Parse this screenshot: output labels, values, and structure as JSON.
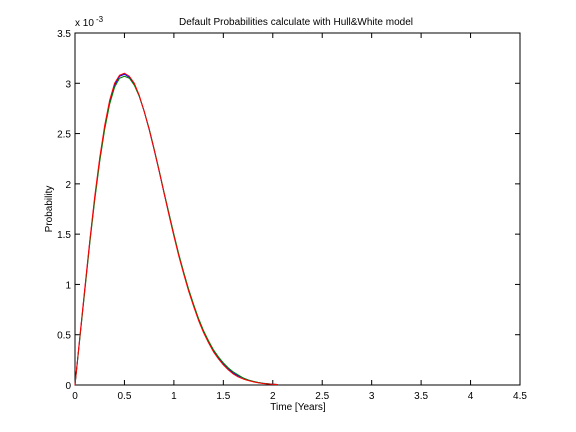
{
  "chart_data": {
    "type": "line",
    "title": "Default Probabilities calculate with Hull&White model",
    "xlabel": "Time [Years]",
    "ylabel": "Probability",
    "y_exponent_label": "x 10",
    "y_exponent_power": "-3",
    "xlim": [
      0,
      4.5
    ],
    "ylim": [
      0,
      3.5
    ],
    "xticks": [
      "0",
      "0.5",
      "1",
      "1.5",
      "2",
      "2.5",
      "3",
      "3.5",
      "4",
      "4.5"
    ],
    "yticks": [
      "0",
      "0.5",
      "1",
      "1.5",
      "2",
      "2.5",
      "3",
      "3.5"
    ],
    "grid": false,
    "series": [
      {
        "color": "#0000ff",
        "x": [
          0,
          0.05,
          0.1,
          0.15,
          0.2,
          0.25,
          0.3,
          0.35,
          0.4,
          0.45,
          0.5,
          0.55,
          0.6,
          0.65,
          0.7,
          0.75,
          0.8,
          0.85,
          0.9,
          0.95,
          1.0,
          1.05,
          1.1,
          1.15,
          1.2,
          1.25,
          1.3,
          1.35,
          1.4,
          1.45,
          1.5,
          1.55,
          1.6,
          1.65,
          1.7,
          1.75,
          1.8,
          1.85,
          1.9,
          1.95,
          2.0,
          2.05
        ],
        "y": [
          0,
          0.48,
          0.96,
          1.43,
          1.86,
          2.24,
          2.56,
          2.81,
          2.98,
          3.07,
          3.09,
          3.06,
          2.99,
          2.87,
          2.72,
          2.54,
          2.34,
          2.13,
          1.91,
          1.7,
          1.49,
          1.29,
          1.11,
          0.94,
          0.79,
          0.65,
          0.53,
          0.43,
          0.34,
          0.27,
          0.21,
          0.16,
          0.12,
          0.09,
          0.07,
          0.05,
          0.035,
          0.025,
          0.017,
          0.012,
          0.008,
          0.005
        ]
      },
      {
        "color": "#008000",
        "x": [
          0,
          0.05,
          0.1,
          0.15,
          0.2,
          0.25,
          0.3,
          0.35,
          0.4,
          0.45,
          0.5,
          0.55,
          0.6,
          0.65,
          0.7,
          0.75,
          0.8,
          0.85,
          0.9,
          0.95,
          1.0,
          1.05,
          1.1,
          1.15,
          1.2,
          1.25,
          1.3,
          1.35,
          1.4,
          1.45,
          1.5,
          1.55,
          1.6,
          1.65,
          1.7,
          1.75,
          1.8,
          1.85,
          1.9,
          1.95,
          2.0,
          2.05
        ],
        "y": [
          0,
          0.47,
          0.94,
          1.41,
          1.84,
          2.22,
          2.54,
          2.79,
          2.96,
          3.05,
          3.07,
          3.05,
          2.98,
          2.87,
          2.72,
          2.55,
          2.35,
          2.14,
          1.92,
          1.71,
          1.5,
          1.3,
          1.12,
          0.95,
          0.8,
          0.66,
          0.54,
          0.44,
          0.35,
          0.28,
          0.22,
          0.17,
          0.13,
          0.1,
          0.07,
          0.05,
          0.037,
          0.026,
          0.018,
          0.012,
          0.008,
          0.005
        ]
      },
      {
        "color": "#ff0000",
        "x": [
          0,
          0.05,
          0.1,
          0.15,
          0.2,
          0.25,
          0.3,
          0.35,
          0.4,
          0.45,
          0.5,
          0.55,
          0.6,
          0.65,
          0.7,
          0.75,
          0.8,
          0.85,
          0.9,
          0.95,
          1.0,
          1.05,
          1.1,
          1.15,
          1.2,
          1.25,
          1.3,
          1.35,
          1.4,
          1.45,
          1.5,
          1.55,
          1.6,
          1.65,
          1.7,
          1.75,
          1.8,
          1.85,
          1.9,
          1.95,
          2.0,
          2.05
        ],
        "y": [
          0,
          0.49,
          0.97,
          1.44,
          1.88,
          2.26,
          2.58,
          2.83,
          3.0,
          3.08,
          3.1,
          3.07,
          3.0,
          2.88,
          2.72,
          2.54,
          2.34,
          2.13,
          1.91,
          1.69,
          1.48,
          1.28,
          1.1,
          0.93,
          0.78,
          0.64,
          0.52,
          0.42,
          0.33,
          0.26,
          0.2,
          0.15,
          0.11,
          0.08,
          0.06,
          0.045,
          0.032,
          0.022,
          0.015,
          0.01,
          0.007,
          0.004
        ]
      }
    ]
  }
}
